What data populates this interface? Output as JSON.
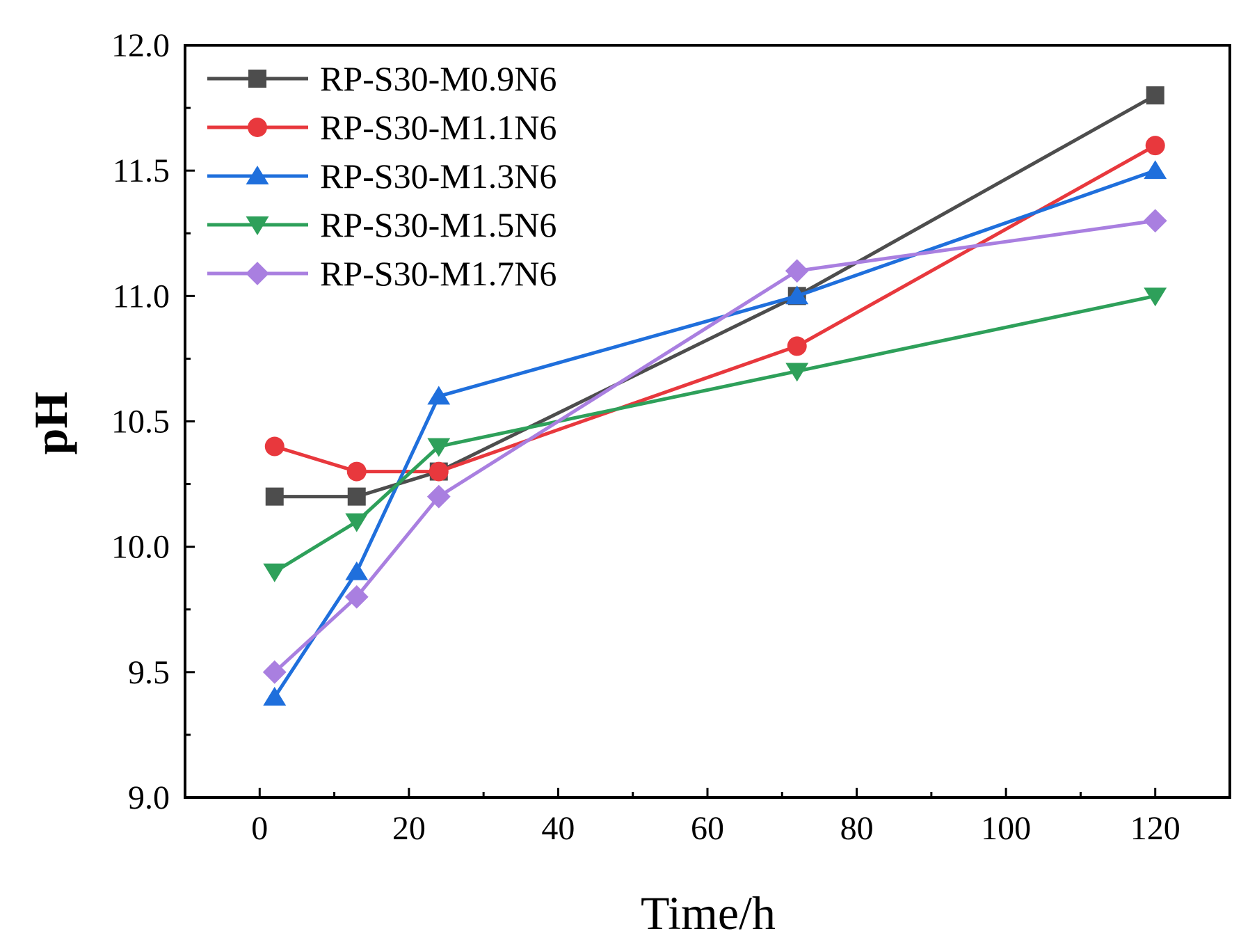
{
  "chart_data": {
    "type": "line",
    "title": "",
    "xlabel": "Time/h",
    "ylabel": "pH",
    "xlim": [
      -10,
      130
    ],
    "ylim": [
      9.0,
      12.0
    ],
    "x_ticks": [
      0,
      20,
      40,
      60,
      80,
      100,
      120
    ],
    "x_tick_labels": [
      "0",
      "20",
      "40",
      "60",
      "80",
      "100",
      "120"
    ],
    "y_ticks": [
      9.0,
      9.5,
      10.0,
      10.5,
      11.0,
      11.5,
      12.0
    ],
    "y_tick_labels": [
      "9.0",
      "9.5",
      "10.0",
      "10.5",
      "11.0",
      "11.5",
      "12.0"
    ],
    "x": [
      2,
      13,
      24,
      72,
      120
    ],
    "legend_position": "top-left",
    "grid": false,
    "series": [
      {
        "name": "RP-S30-M0.9N6",
        "color": "#4d4d4d",
        "marker": "square",
        "values": [
          10.2,
          10.2,
          10.3,
          11.0,
          11.8
        ]
      },
      {
        "name": "RP-S30-M1.1N6",
        "color": "#e8383d",
        "marker": "circle",
        "values": [
          10.4,
          10.3,
          10.3,
          10.8,
          11.6
        ]
      },
      {
        "name": "RP-S30-M1.3N6",
        "color": "#1f6fdc",
        "marker": "triangle-up",
        "values": [
          9.4,
          9.9,
          10.6,
          11.0,
          11.5
        ]
      },
      {
        "name": "RP-S30-M1.5N6",
        "color": "#2ea05a",
        "marker": "triangle-down",
        "values": [
          9.9,
          10.1,
          10.4,
          10.7,
          11.0
        ]
      },
      {
        "name": "RP-S30-M1.7N6",
        "color": "#a97fe0",
        "marker": "diamond",
        "values": [
          9.5,
          9.8,
          10.2,
          11.1,
          11.3
        ]
      }
    ]
  }
}
